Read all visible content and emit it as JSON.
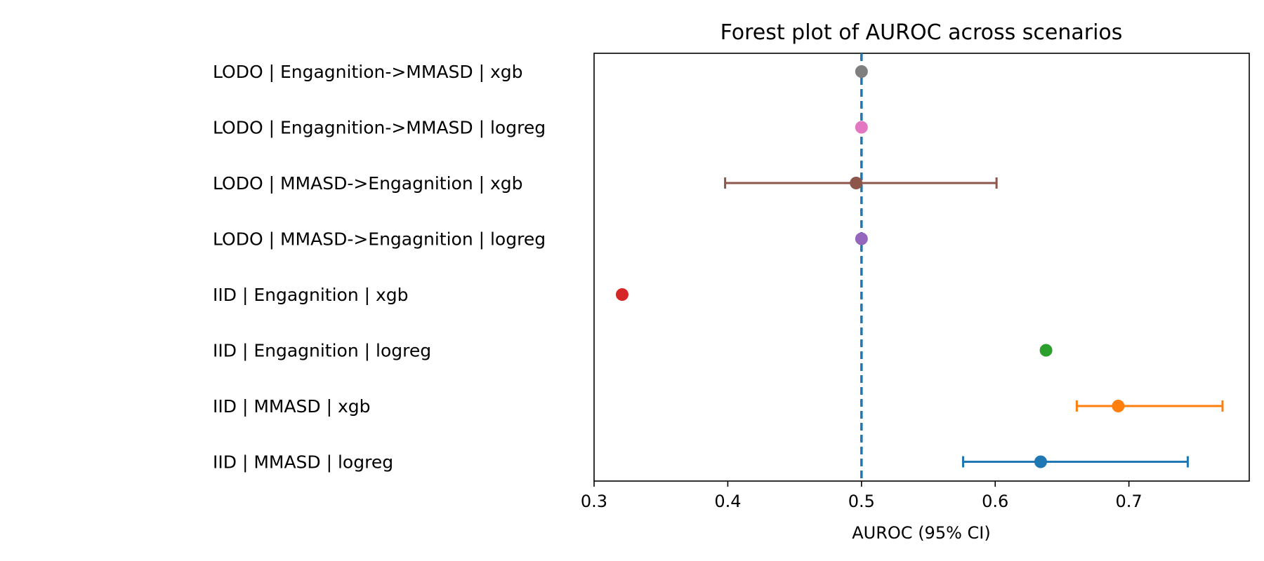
{
  "chart_data": {
    "type": "scatter",
    "subtype": "forest-plot",
    "title": "Forest plot of AUROC across scenarios",
    "xlabel": "AUROC (95% CI)",
    "ylabel": "",
    "xlim": [
      0.3,
      0.79
    ],
    "xticks": [
      "0.3",
      "0.4",
      "0.5",
      "0.6",
      "0.7"
    ],
    "grid": false,
    "reference_line": {
      "x": 0.5,
      "style": "dashed",
      "color": "#1f77b4"
    },
    "rows": [
      {
        "label": "LODO | Engagnition->MMASD | xgb",
        "estimate": 0.5,
        "ci_low": null,
        "ci_high": null,
        "color": "#7f7f7f"
      },
      {
        "label": "LODO | Engagnition->MMASD | logreg",
        "estimate": 0.5,
        "ci_low": null,
        "ci_high": null,
        "color": "#e377c2"
      },
      {
        "label": "LODO | MMASD->Engagnition | xgb",
        "estimate": 0.496,
        "ci_low": 0.398,
        "ci_high": 0.601,
        "color": "#8c564b"
      },
      {
        "label": "LODO | MMASD->Engagnition | logreg",
        "estimate": 0.5,
        "ci_low": null,
        "ci_high": null,
        "color": "#9467bd"
      },
      {
        "label": "IID | Engagnition | xgb",
        "estimate": 0.321,
        "ci_low": null,
        "ci_high": null,
        "color": "#d62728"
      },
      {
        "label": "IID | Engagnition | logreg",
        "estimate": 0.638,
        "ci_low": null,
        "ci_high": null,
        "color": "#2ca02c"
      },
      {
        "label": "IID | MMASD | xgb",
        "estimate": 0.692,
        "ci_low": 0.661,
        "ci_high": 0.77,
        "color": "#ff7f0e"
      },
      {
        "label": "IID | MMASD | logreg",
        "estimate": 0.634,
        "ci_low": 0.576,
        "ci_high": 0.744,
        "color": "#1f77b4"
      }
    ]
  }
}
